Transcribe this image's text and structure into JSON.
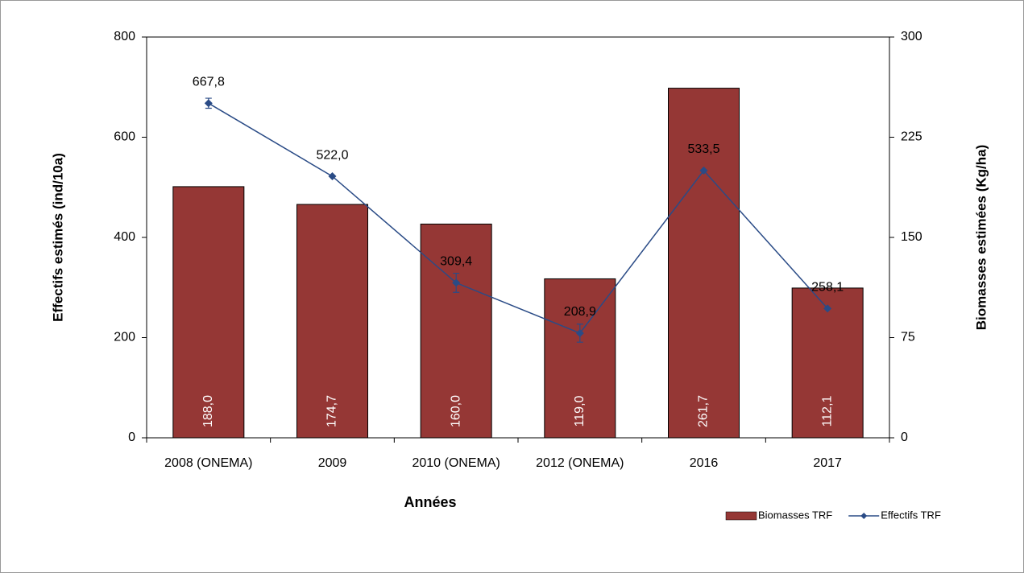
{
  "chart_data": {
    "type": "bar",
    "xlabel": "Années",
    "ylabel": "Effectifs estimés  (ind/10a)",
    "y2label": "Biomasses estimées  (Kg/ha)",
    "categories": [
      "2008 (ONEMA)",
      "2009",
      "2010 (ONEMA)",
      "2012 (ONEMA)",
      "2016",
      "2017"
    ],
    "series": [
      {
        "name": "Biomasses TRF",
        "type": "bar",
        "axis": "y2",
        "color": "#953735",
        "values": [
          188.0,
          174.7,
          160.0,
          119.0,
          261.7,
          112.1
        ],
        "value_labels": [
          "188,0",
          "174,7",
          "160,0",
          "119,0",
          "261,7",
          "112,1"
        ]
      },
      {
        "name": "Effectifs TRF",
        "type": "line",
        "axis": "y",
        "color": "#2a4b86",
        "values": [
          667.8,
          522.0,
          309.4,
          208.9,
          533.5,
          258.1
        ],
        "value_labels": [
          "667,8",
          "522,0",
          "309,4",
          "208,9",
          "533,5",
          "258,1"
        ],
        "errors": [
          10,
          null,
          19,
          18,
          null,
          null
        ]
      }
    ],
    "ylim": [
      0,
      800
    ],
    "yticks": [
      0,
      200,
      400,
      600,
      800
    ],
    "y2lim": [
      0,
      300
    ],
    "y2ticks": [
      0,
      75,
      150,
      225,
      300
    ],
    "grid": false,
    "legend": "lower right"
  }
}
